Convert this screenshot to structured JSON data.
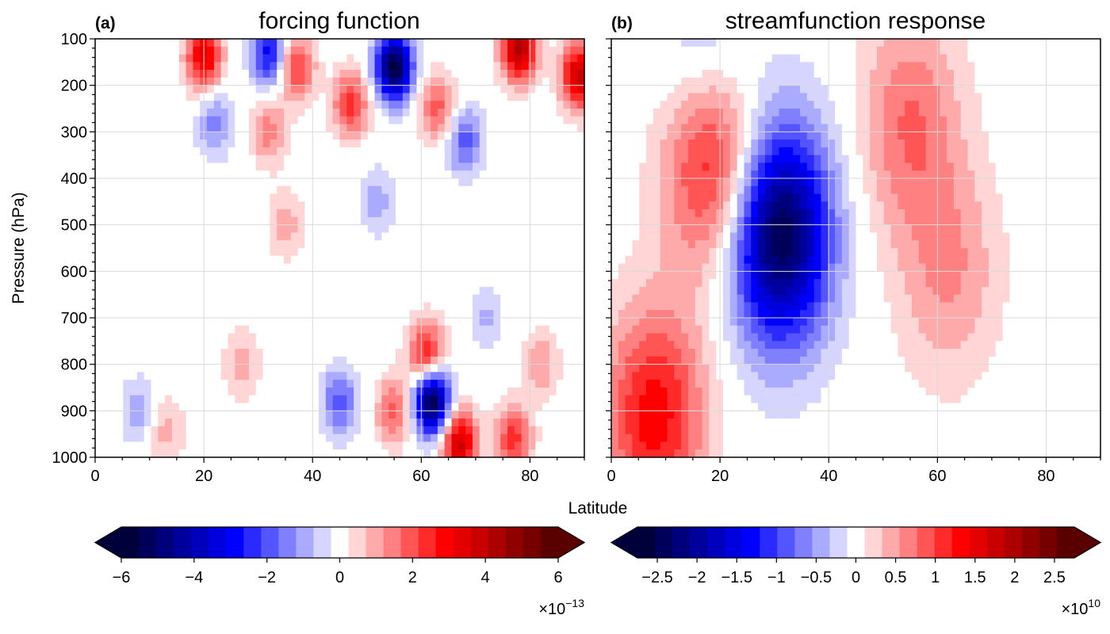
{
  "figure": {
    "ylabel": "Pressure (hPa)",
    "xlabel": "Latitude"
  },
  "colors": {
    "negative_extreme": "#00003a",
    "negative_mid": "#0000ff",
    "zero": "#ffffff",
    "positive_mid": "#ff0000",
    "positive_extreme": "#5a0000",
    "gridline": "#d9d9d9"
  },
  "chart_data": [
    {
      "type": "heatmap",
      "panel_label": "(a)",
      "title": "forcing function",
      "x_ticks": [
        "0",
        "20",
        "40",
        "60",
        "80"
      ],
      "y_ticks": [
        "100",
        "200",
        "300",
        "400",
        "500",
        "600",
        "700",
        "800",
        "900",
        "1000"
      ],
      "xlim": [
        0,
        90
      ],
      "ylim": [
        1000,
        100
      ],
      "grid": true,
      "field_features": [
        {
          "lat": 20,
          "p": 140,
          "value": 3.5
        },
        {
          "lat": 32,
          "p": 130,
          "value": -3
        },
        {
          "lat": 37,
          "p": 160,
          "value": 2.5
        },
        {
          "lat": 22,
          "p": 280,
          "value": -1.5
        },
        {
          "lat": 32,
          "p": 300,
          "value": 1.5
        },
        {
          "lat": 47,
          "p": 240,
          "value": 2.5
        },
        {
          "lat": 55,
          "p": 160,
          "value": -6
        },
        {
          "lat": 63,
          "p": 250,
          "value": 2
        },
        {
          "lat": 78,
          "p": 120,
          "value": 4.5
        },
        {
          "lat": 89,
          "p": 180,
          "value": 4
        },
        {
          "lat": 68,
          "p": 320,
          "value": -2
        },
        {
          "lat": 35,
          "p": 500,
          "value": 1
        },
        {
          "lat": 52,
          "p": 450,
          "value": -1
        },
        {
          "lat": 62,
          "p": 880,
          "value": -6
        },
        {
          "lat": 61,
          "p": 780,
          "value": 3
        },
        {
          "lat": 67,
          "p": 970,
          "value": 4
        },
        {
          "lat": 77,
          "p": 960,
          "value": 2.5
        },
        {
          "lat": 45,
          "p": 880,
          "value": -2
        },
        {
          "lat": 55,
          "p": 900,
          "value": 2
        },
        {
          "lat": 13,
          "p": 940,
          "value": 1
        },
        {
          "lat": 8,
          "p": 900,
          "value": -1
        },
        {
          "lat": 27,
          "p": 800,
          "value": 1
        },
        {
          "lat": 72,
          "p": 700,
          "value": -0.8
        },
        {
          "lat": 82,
          "p": 800,
          "value": 1.2
        }
      ],
      "colorbar": {
        "ticks": [
          "−6",
          "−4",
          "−2",
          "0",
          "2",
          "4",
          "6"
        ],
        "range": [
          -6,
          6
        ],
        "multiplier": "×10",
        "exponent": "−13"
      }
    },
    {
      "type": "heatmap",
      "panel_label": "(b)",
      "title": "streamfunction response",
      "x_ticks": [
        "0",
        "20",
        "40",
        "60",
        "80"
      ],
      "y_ticks": [
        "100",
        "200",
        "300",
        "400",
        "500",
        "600",
        "700",
        "800",
        "900",
        "1000"
      ],
      "xlim": [
        0,
        90
      ],
      "ylim": [
        1000,
        100
      ],
      "grid": true,
      "field_features": [
        {
          "lat": 19,
          "p": 360,
          "value": 1.5
        },
        {
          "lat": 8,
          "p": 910,
          "value": 1.4
        },
        {
          "lat": 31,
          "p": 520,
          "value": -2.7
        },
        {
          "lat": 18,
          "p": 150,
          "value": -0.6
        },
        {
          "lat": 55,
          "p": 280,
          "value": 0.8
        },
        {
          "lat": 62,
          "p": 600,
          "value": 0.6
        }
      ],
      "colorbar": {
        "ticks": [
          "−2.5",
          "−2",
          "−1.5",
          "−1",
          "−0.5",
          "0",
          "0.5",
          "1",
          "1.5",
          "2",
          "2.5"
        ],
        "range": [
          -2.75,
          2.75
        ],
        "multiplier": "×10",
        "exponent": "10"
      }
    }
  ]
}
